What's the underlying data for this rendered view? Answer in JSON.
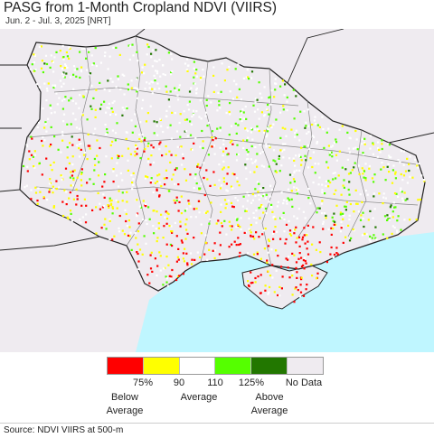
{
  "title": "PASG from 1-Month Cropland NDVI (VIIRS)",
  "subtitle": "Jun. 2 - Jul. 3, 2025 [NRT]",
  "legend": {
    "colors": [
      "#ff0000",
      "#ffff00",
      "#ffffff",
      "#55ff00",
      "#227700",
      "#efebf0"
    ],
    "ticks": [
      "75%",
      "90",
      "110",
      "125%",
      "No Data"
    ],
    "captions": [
      {
        "l1": "Below",
        "l2": "Average"
      },
      {
        "l1": "Average",
        "l2": ""
      },
      {
        "l1": "Above",
        "l2": "Average"
      }
    ]
  },
  "map_colors": {
    "land": "#efebf0",
    "sea": "#bff6ff",
    "border": "#222222",
    "oblast_border": "#888888"
  },
  "source": "Source: NDVI VIIRS at 500-m"
}
